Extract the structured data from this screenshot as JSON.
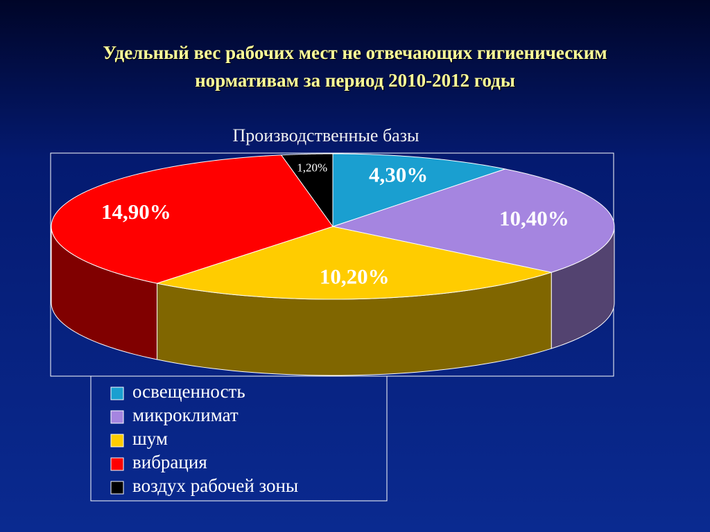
{
  "chart_data": {
    "type": "pie3d",
    "title": "Удельный вес рабочих мест не отвечающих гигиеническим нормативам за период 2010-2012 годы",
    "subtitle": "Производственные базы",
    "categories": [
      "освещенность",
      "микроклимат",
      "шум",
      "вибрация",
      "воздух рабочей зоны"
    ],
    "values": [
      4.3,
      10.4,
      10.2,
      14.9,
      1.2
    ],
    "value_labels": [
      "4,30%",
      "10,40%",
      "10,20%",
      "14,90%",
      "1,20%"
    ],
    "colors": [
      "#1a9fd0",
      "#a585e0",
      "#ffcc00",
      "#ff0000",
      "#000000"
    ],
    "legend": "bottom-left"
  }
}
